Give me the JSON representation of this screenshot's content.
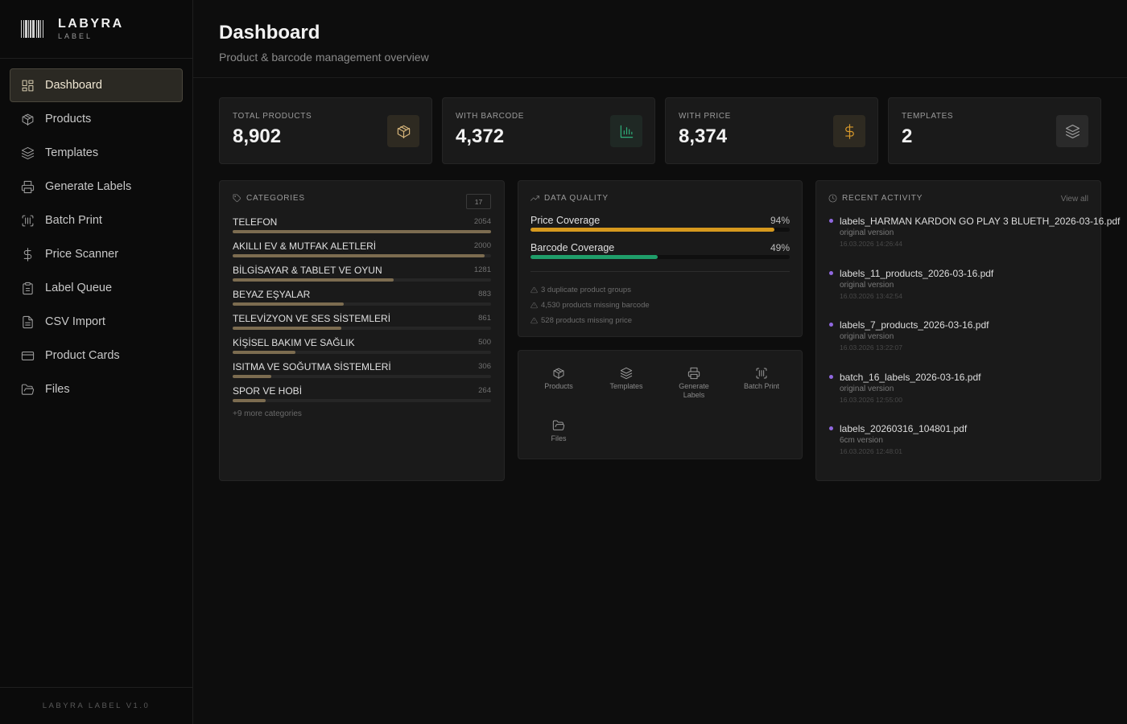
{
  "brand": {
    "name": "LABYRA",
    "sub": "LABEL"
  },
  "sidebar": {
    "items": [
      {
        "label": "Dashboard",
        "icon": "dashboard-icon",
        "active": true
      },
      {
        "label": "Products",
        "icon": "box-icon"
      },
      {
        "label": "Templates",
        "icon": "layers-icon"
      },
      {
        "label": "Generate Labels",
        "icon": "printer-icon"
      },
      {
        "label": "Batch Print",
        "icon": "barcode-scan-icon"
      },
      {
        "label": "Price Scanner",
        "icon": "dollar-icon"
      },
      {
        "label": "Label Queue",
        "icon": "clipboard-icon"
      },
      {
        "label": "CSV Import",
        "icon": "file-icon"
      },
      {
        "label": "Product Cards",
        "icon": "card-icon"
      },
      {
        "label": "Files",
        "icon": "folder-icon"
      }
    ],
    "footer": "LABYRA LABEL V1.0"
  },
  "header": {
    "title": "Dashboard",
    "subtitle": "Product & barcode management overview"
  },
  "stats": [
    {
      "label": "TOTAL PRODUCTS",
      "value": "8,902",
      "icon": "box-icon",
      "accent": "#d6b57a"
    },
    {
      "label": "WITH BARCODE",
      "value": "4,372",
      "icon": "bar-chart-icon",
      "accent": "#2fae7a"
    },
    {
      "label": "WITH PRICE",
      "value": "8,374",
      "icon": "dollar-icon",
      "accent": "#d99a2b"
    },
    {
      "label": "TEMPLATES",
      "value": "2",
      "icon": "layers-icon",
      "accent": "#9b9b9b"
    }
  ],
  "categories": {
    "title": "CATEGORIES",
    "count": "17",
    "items": [
      {
        "name": "TELEFON",
        "value": "2054"
      },
      {
        "name": "AKILLI EV & MUTFAK ALETLERİ",
        "value": "2000"
      },
      {
        "name": "BİLGİSAYAR & TABLET VE OYUN",
        "value": "1281"
      },
      {
        "name": "BEYAZ EŞYALAR",
        "value": "883"
      },
      {
        "name": "TELEVİZYON VE SES SİSTEMLERİ",
        "value": "861"
      },
      {
        "name": "KİŞİSEL BAKIM VE SAĞLIK",
        "value": "500"
      },
      {
        "name": "ISITMA VE SOĞUTMA SİSTEMLERİ",
        "value": "306"
      },
      {
        "name": "SPOR VE HOBİ",
        "value": "264"
      }
    ],
    "more": "+9 more categories"
  },
  "data_quality": {
    "title": "DATA QUALITY",
    "metrics": [
      {
        "label": "Price Coverage",
        "percent": "94%",
        "fraction": 0.94,
        "color": "#d6991e"
      },
      {
        "label": "Barcode Coverage",
        "percent": "49%",
        "fraction": 0.49,
        "color": "#1f9e6a"
      }
    ],
    "warnings": [
      "3 duplicate product groups",
      "4,530 products missing barcode",
      "528 products missing price"
    ]
  },
  "quick_actions": [
    {
      "label": "Products",
      "icon": "box-icon"
    },
    {
      "label": "Templates",
      "icon": "layers-icon"
    },
    {
      "label": "Generate Labels",
      "icon": "printer-icon"
    },
    {
      "label": "Batch Print",
      "icon": "barcode-scan-icon"
    },
    {
      "label": "Files",
      "icon": "folder-icon"
    }
  ],
  "recent_activity": {
    "title": "RECENT ACTIVITY",
    "view_all": "View all",
    "items": [
      {
        "name": "labels_HARMAN KARDON GO PLAY 3 BLUETH_2026-03-16.pdf",
        "version": "original version",
        "time": "16.03.2026 14:26:44"
      },
      {
        "name": "labels_11_products_2026-03-16.pdf",
        "version": "original version",
        "time": "16.03.2026 13:42:54"
      },
      {
        "name": "labels_7_products_2026-03-16.pdf",
        "version": "original version",
        "time": "16.03.2026 13:22:07"
      },
      {
        "name": "batch_16_labels_2026-03-16.pdf",
        "version": "original version",
        "time": "16.03.2026 12:55:00"
      },
      {
        "name": "labels_20260316_104801.pdf",
        "version": "6cm version",
        "time": "16.03.2026 12:48:01"
      }
    ]
  }
}
